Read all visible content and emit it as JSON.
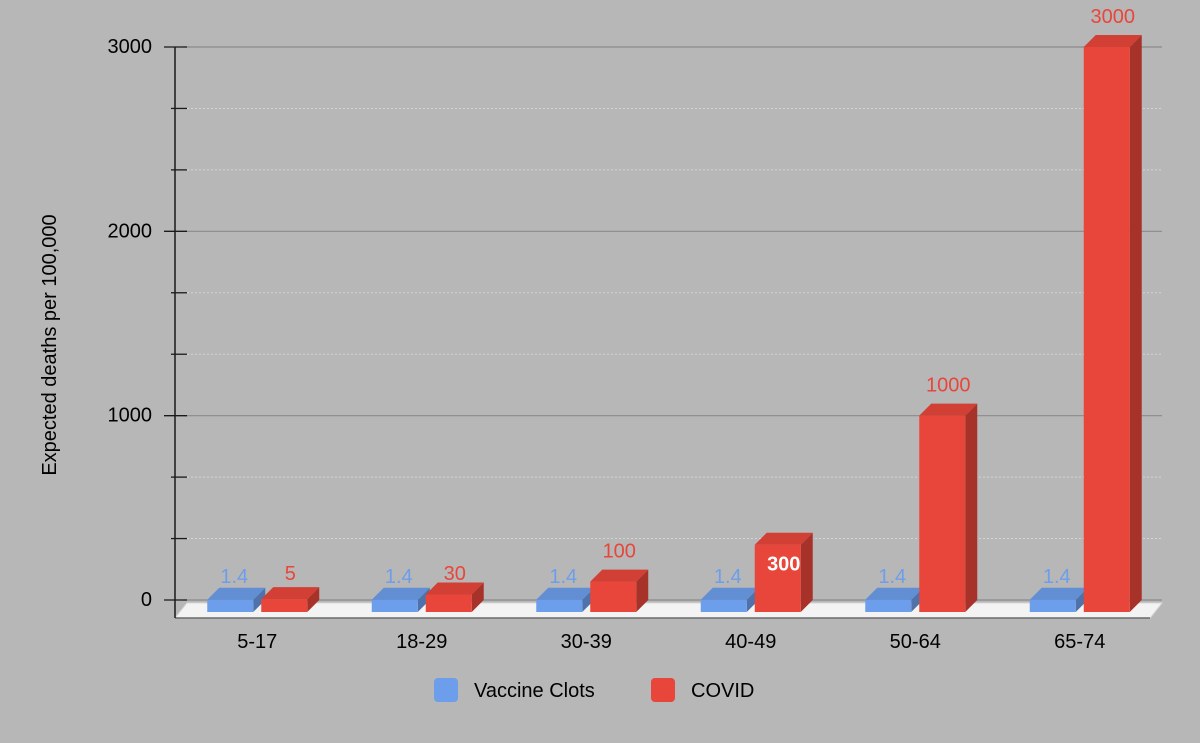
{
  "chart_data": {
    "type": "bar",
    "title": "",
    "xlabel": "",
    "ylabel": "Expected deaths per 100,000",
    "ylim": [
      0,
      3000
    ],
    "yticks": [
      "0",
      "1000",
      "2000",
      "3000"
    ],
    "categories": [
      "5-17",
      "18-29",
      "30-39",
      "40-49",
      "50-64",
      "65-74"
    ],
    "series": [
      {
        "name": "Vaccine Clots",
        "color": "#6d9eeb",
        "values": [
          1.4,
          1.4,
          1.4,
          1.4,
          1.4,
          1.4
        ],
        "labels": [
          "1.4",
          "1.4",
          "1.4",
          "1.4",
          "1.4",
          "1.4"
        ]
      },
      {
        "name": "COVID",
        "color": "#e8463b",
        "values": [
          5,
          30,
          100,
          300,
          1000,
          3000
        ],
        "labels": [
          "5",
          "30",
          "100",
          "300",
          "1000",
          "3000"
        ]
      }
    ],
    "grid": true,
    "legend_position": "bottom",
    "style": "3d"
  }
}
